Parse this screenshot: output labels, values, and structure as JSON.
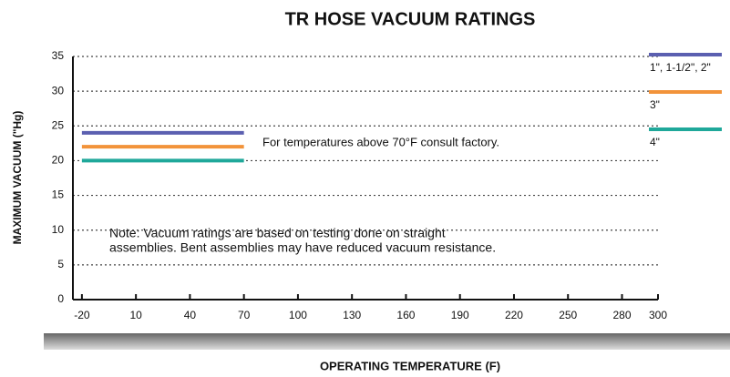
{
  "chart_data": {
    "type": "line",
    "title": "TR HOSE VACUUM RATINGS",
    "ylabel": "MAXIMUM VACUUM (\"Hg)",
    "xlabel": "OPERATING TEMPERATURE (F)",
    "annotations": [
      "For temperatures above 70°F consult factory.",
      "Note:  Vacuum ratings are based on testing done on straight",
      "assemblies.  Bent assemblies may have reduced vacuum resistance."
    ],
    "series": [
      {
        "name": "1\", 1-1/2\", 2\"",
        "color": "#5b5fb0",
        "x": [
          -20,
          70
        ],
        "values": [
          24,
          24
        ]
      },
      {
        "name": "3\"",
        "color": "#f2933a",
        "x": [
          -20,
          70
        ],
        "values": [
          22,
          22
        ]
      },
      {
        "name": "4\"",
        "color": "#1fa89a",
        "x": [
          -20,
          70
        ],
        "values": [
          20,
          20
        ]
      }
    ],
    "xlim": [
      -25,
      300
    ],
    "xticks": [
      -20,
      10,
      40,
      70,
      100,
      130,
      160,
      190,
      220,
      250,
      280,
      300
    ],
    "ylim": [
      0,
      35
    ],
    "yticks": [
      0,
      5,
      10,
      15,
      20,
      25,
      30,
      35
    ],
    "grid": true,
    "legend": "right"
  }
}
